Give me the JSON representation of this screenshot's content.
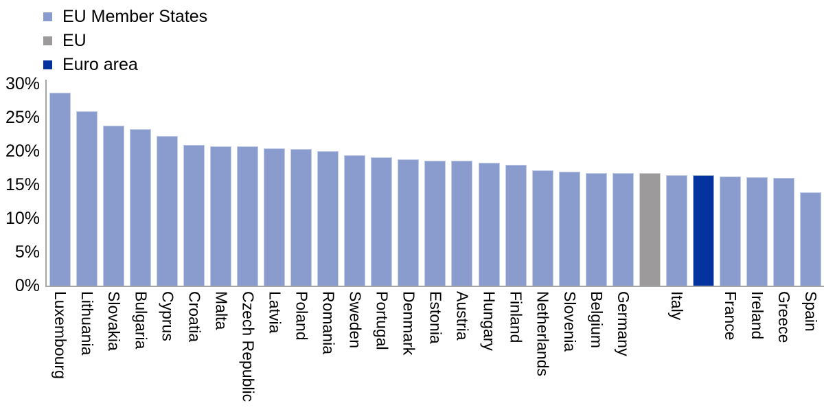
{
  "legend": {
    "items": [
      {
        "label": "EU Member States",
        "series": "eu_member_states",
        "color": "#8a9cce"
      },
      {
        "label": "EU",
        "series": "eu",
        "color": "#9c9a9a"
      },
      {
        "label": "Euro area",
        "series": "euro_area",
        "color": "#0433a0"
      }
    ]
  },
  "y_axis": {
    "tick_labels": [
      "30%",
      "25%",
      "20%",
      "15%",
      "10%",
      "5%",
      "0%"
    ],
    "tick_values": [
      30,
      25,
      20,
      15,
      10,
      5,
      0
    ],
    "unit": "%"
  },
  "chart_data": {
    "type": "bar",
    "title": "",
    "xlabel": "",
    "ylabel": "",
    "ylim": [
      0,
      30
    ],
    "grid": false,
    "legend_position": "top-left",
    "series_colors": {
      "eu_member_states": {
        "fill": "#8a9cce",
        "border": "#c5cee9"
      },
      "eu": {
        "fill": "#9c9a9a",
        "border": "#d2d0d0"
      },
      "euro_area": {
        "fill": "#0433a0",
        "border": "#aebcdc"
      }
    },
    "bars": [
      {
        "label": "Luxembourg",
        "series": "eu_member_states",
        "value": 28.7
      },
      {
        "label": "Lithuania",
        "series": "eu_member_states",
        "value": 25.9
      },
      {
        "label": "Slovakia",
        "series": "eu_member_states",
        "value": 23.8
      },
      {
        "label": "Bulgaria",
        "series": "eu_member_states",
        "value": 23.3
      },
      {
        "label": "Cyprus",
        "series": "eu_member_states",
        "value": 22.2
      },
      {
        "label": "Croatia",
        "series": "eu_member_states",
        "value": 20.9
      },
      {
        "label": "Malta",
        "series": "eu_member_states",
        "value": 20.7
      },
      {
        "label": "Czech Republic",
        "series": "eu_member_states",
        "value": 20.7
      },
      {
        "label": "Latvia",
        "series": "eu_member_states",
        "value": 20.4
      },
      {
        "label": "Poland",
        "series": "eu_member_states",
        "value": 20.3
      },
      {
        "label": "Romania",
        "series": "eu_member_states",
        "value": 20.0
      },
      {
        "label": "Sweden",
        "series": "eu_member_states",
        "value": 19.4
      },
      {
        "label": "Portugal",
        "series": "eu_member_states",
        "value": 19.1
      },
      {
        "label": "Denmark",
        "series": "eu_member_states",
        "value": 18.8
      },
      {
        "label": "Estonia",
        "series": "eu_member_states",
        "value": 18.6
      },
      {
        "label": "Austria",
        "series": "eu_member_states",
        "value": 18.6
      },
      {
        "label": "Hungary",
        "series": "eu_member_states",
        "value": 18.3
      },
      {
        "label": "Finland",
        "series": "eu_member_states",
        "value": 18.0
      },
      {
        "label": "Netherlands",
        "series": "eu_member_states",
        "value": 17.1
      },
      {
        "label": "Slovenia",
        "series": "eu_member_states",
        "value": 16.9
      },
      {
        "label": "Belgium",
        "series": "eu_member_states",
        "value": 16.7
      },
      {
        "label": "Germany",
        "series": "eu_member_states",
        "value": 16.7
      },
      {
        "label": "",
        "name": "EU",
        "series": "eu",
        "value": 16.7
      },
      {
        "label": "Italy",
        "series": "eu_member_states",
        "value": 16.4
      },
      {
        "label": "",
        "name": "Euro area",
        "series": "euro_area",
        "value": 16.4
      },
      {
        "label": "France",
        "series": "eu_member_states",
        "value": 16.2
      },
      {
        "label": "Ireland",
        "series": "eu_member_states",
        "value": 16.1
      },
      {
        "label": "Greece",
        "series": "eu_member_states",
        "value": 16.0
      },
      {
        "label": "Spain",
        "series": "eu_member_states",
        "value": 13.9
      }
    ]
  }
}
